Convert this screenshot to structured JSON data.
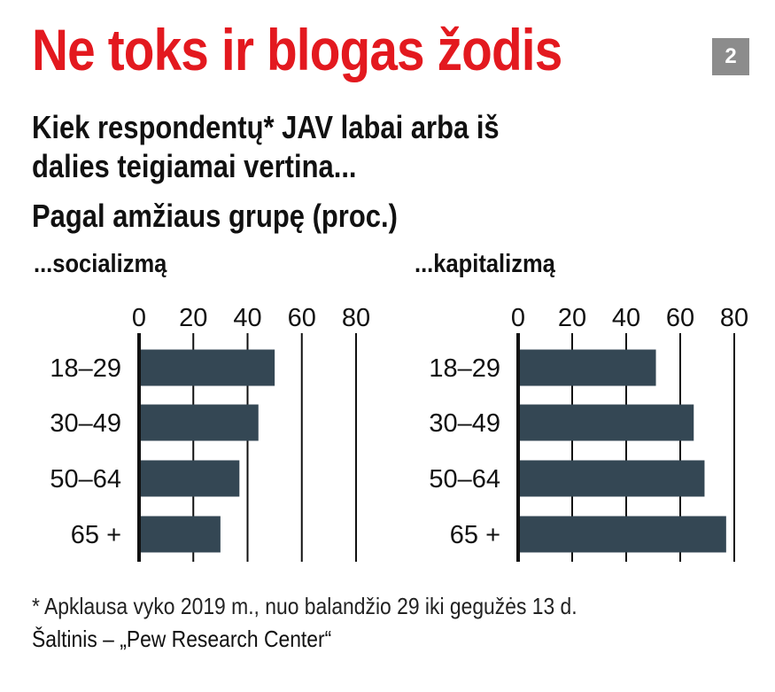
{
  "title": "Ne toks ir blogas žodis",
  "badge": "2",
  "subtitle_line1": "Kiek respondentų* JAV labai arba iš",
  "subtitle_line2": "dalies teigiamai vertina...",
  "grouping_label": "Pagal amžiaus grupę (proc.)",
  "footnote": "* Apklausa vyko 2019 m., nuo balandžio 29 iki gegužės 13 d.",
  "source": "Šaltinis – „Pew Research Center“",
  "colors": {
    "title": "#e3191f",
    "bar": "#344754",
    "badge": "#8c8c8c"
  },
  "chart_data": [
    {
      "type": "bar",
      "orientation": "horizontal",
      "title": "...socializmą",
      "categories": [
        "18–29",
        "30–49",
        "50–64",
        "65 +"
      ],
      "values": [
        50,
        44,
        37,
        30
      ],
      "xticks": [
        0,
        20,
        40,
        60,
        80
      ],
      "xlim": [
        0,
        80
      ],
      "grid": true
    },
    {
      "type": "bar",
      "orientation": "horizontal",
      "title": "...kapitalizmą",
      "categories": [
        "18–29",
        "30–49",
        "50–64",
        "65 +"
      ],
      "values": [
        51,
        65,
        69,
        77
      ],
      "xticks": [
        0,
        20,
        40,
        60,
        80
      ],
      "xlim": [
        0,
        80
      ],
      "grid": true
    }
  ]
}
